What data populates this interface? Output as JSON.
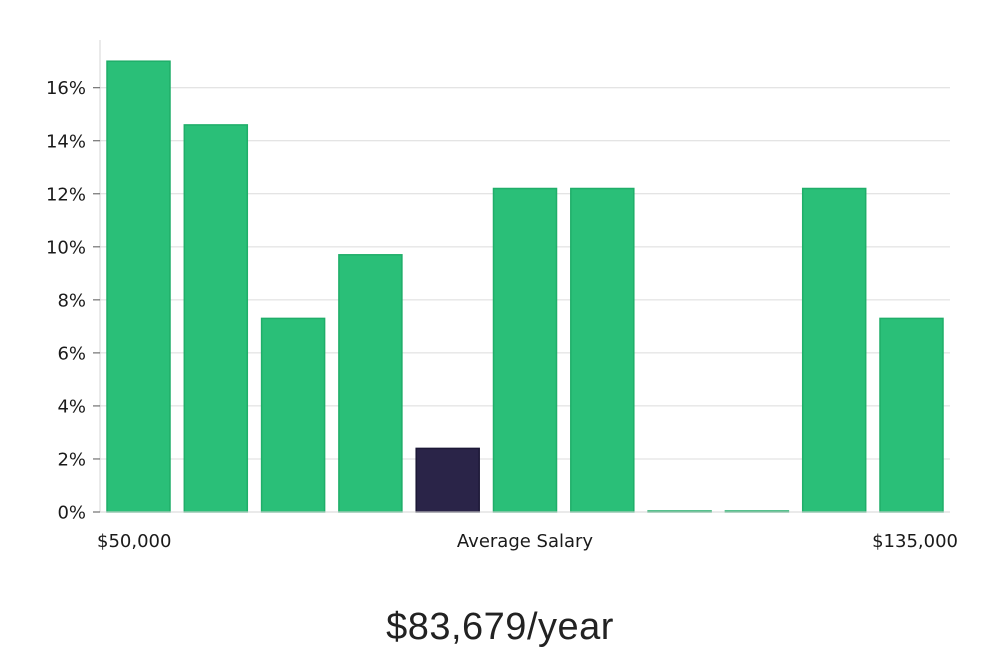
{
  "chart_data": {
    "type": "bar",
    "values": [
      17.0,
      14.6,
      7.3,
      9.7,
      2.4,
      12.2,
      12.2,
      0,
      0,
      12.2,
      7.3
    ],
    "highlight_index": 4,
    "ylim": [
      0,
      17.8
    ],
    "yticks": [
      "0%",
      "2%",
      "4%",
      "6%",
      "8%",
      "10%",
      "12%",
      "14%",
      "16%"
    ],
    "ytick_values": [
      0,
      2,
      4,
      6,
      8,
      10,
      12,
      14,
      16
    ],
    "x_labels": {
      "left": "$50,000",
      "center": "Average Salary",
      "right": "$135,000"
    },
    "grid": true,
    "colors": {
      "bar": "#2abf78",
      "bar_edge": "#1fae69",
      "highlight": "#2a2448",
      "grid": "#dcdcdc",
      "axis": "#d4d4d4"
    }
  },
  "salary_text": "$83,679/year"
}
